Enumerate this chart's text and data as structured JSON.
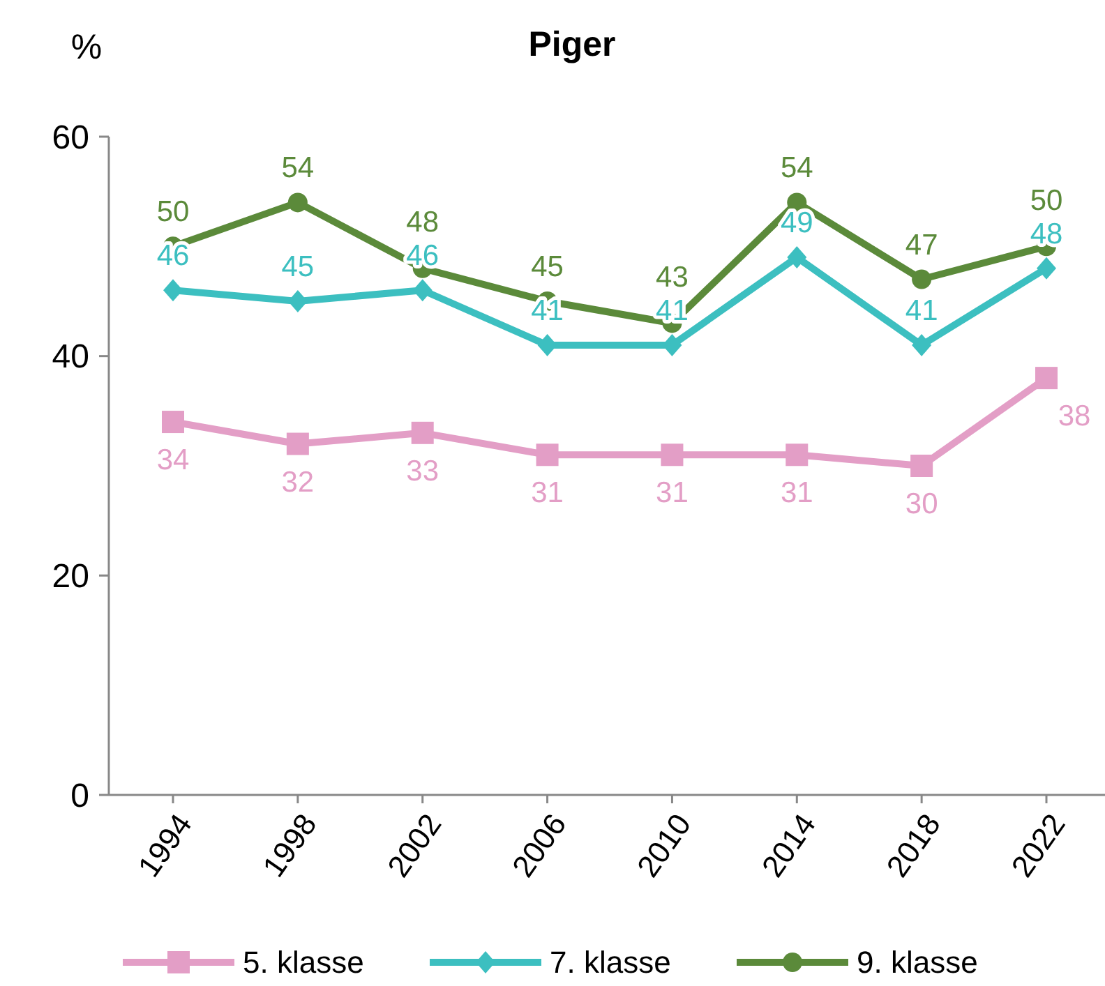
{
  "chart_data": {
    "type": "line",
    "title": "Piger",
    "ylabel": "%",
    "categories": [
      "1994",
      "1998",
      "2002",
      "2006",
      "2010",
      "2014",
      "2018",
      "2022"
    ],
    "series": [
      {
        "name": "5. klasse",
        "color": "#e39ec6",
        "marker": "square",
        "values": [
          34,
          32,
          33,
          31,
          31,
          31,
          30,
          38
        ]
      },
      {
        "name": "7. klasse",
        "color": "#3cbfc0",
        "marker": "diamond",
        "values": [
          46,
          45,
          46,
          41,
          41,
          49,
          41,
          48
        ]
      },
      {
        "name": "9. klasse",
        "color": "#5b8a3a",
        "marker": "circle",
        "values": [
          50,
          54,
          48,
          45,
          43,
          54,
          47,
          50
        ]
      }
    ],
    "ylim": [
      0,
      60
    ],
    "yticks": [
      0,
      20,
      40,
      60
    ],
    "data_labels": true,
    "legend": "bottom",
    "grid": false
  }
}
